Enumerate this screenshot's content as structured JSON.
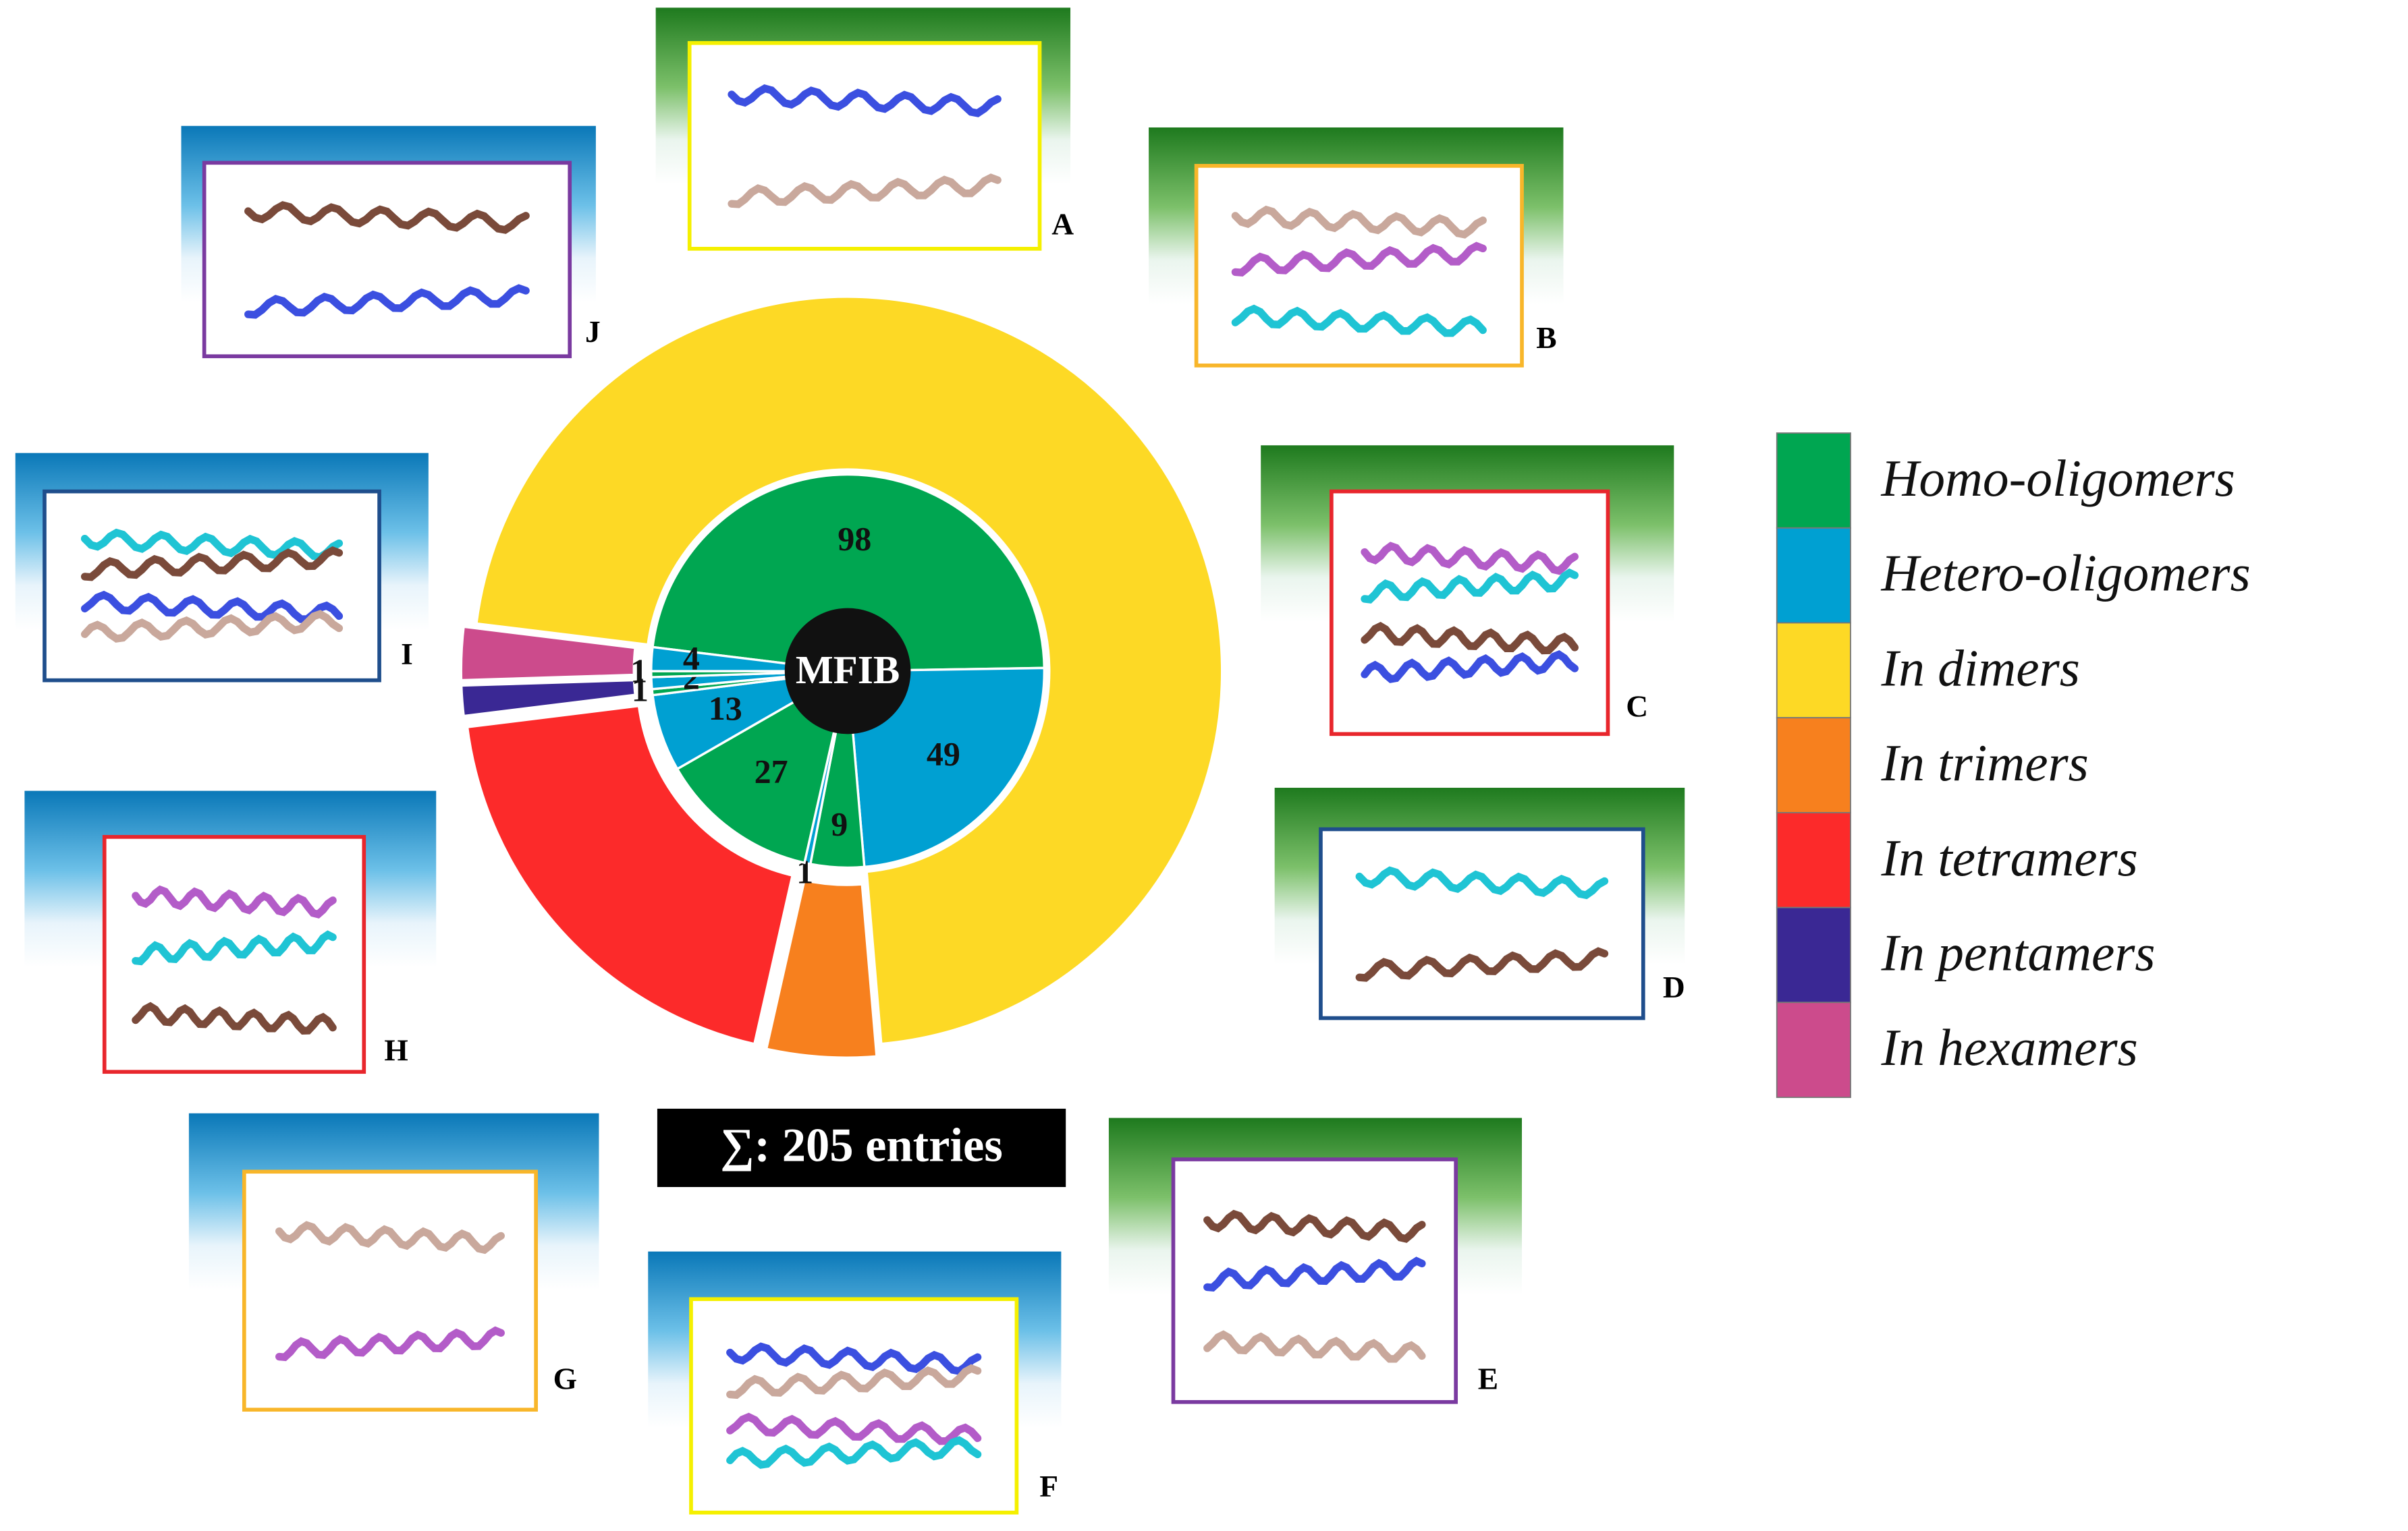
{
  "chart_data": {
    "type": "sunburst",
    "center_label": "MFIB",
    "total_label": "∑: 205 entries",
    "inner": {
      "series": [
        {
          "name": "Homo-oligomers",
          "color": "#00a651",
          "values": [
            98,
            9,
            27,
            1,
            1
          ]
        },
        {
          "name": "Hetero-oligomers",
          "color": "#00a0d2",
          "values": [
            49,
            1,
            13,
            2,
            4
          ]
        }
      ]
    },
    "outer": {
      "categories": [
        "In dimers",
        "In trimers",
        "In tetramers",
        "In pentamers",
        "In hexamers"
      ],
      "colors": [
        "#fdd925",
        "#f7801e",
        "#fc2a2a",
        "#3a2894",
        "#cc4b8c"
      ],
      "values": [
        147,
        10,
        40,
        3,
        5
      ]
    },
    "panels": [
      {
        "label": "A",
        "frame": "#f5f000",
        "header": "green"
      },
      {
        "label": "B",
        "frame": "#f8b62a",
        "header": "green"
      },
      {
        "label": "C",
        "frame": "#e8262c",
        "header": "green"
      },
      {
        "label": "D",
        "frame": "#1f4e8c",
        "header": "green"
      },
      {
        "label": "E",
        "frame": "#7a3aa0",
        "header": "green"
      },
      {
        "label": "F",
        "frame": "#f5f000",
        "header": "blue"
      },
      {
        "label": "G",
        "frame": "#f8b62a",
        "header": "blue"
      },
      {
        "label": "H",
        "frame": "#e8262c",
        "header": "blue"
      },
      {
        "label": "I",
        "frame": "#1f4e8c",
        "header": "blue"
      },
      {
        "label": "J",
        "frame": "#7a3aa0",
        "header": "blue"
      }
    ]
  }
}
